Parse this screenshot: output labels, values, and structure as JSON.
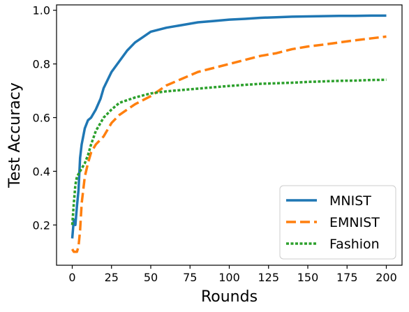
{
  "chart_data": {
    "type": "line",
    "title": "",
    "xlabel": "Rounds",
    "ylabel": "Test Accuracy",
    "xlim": [
      -10,
      210
    ],
    "ylim": [
      0.05,
      1.02
    ],
    "xticks": [
      0,
      25,
      50,
      75,
      100,
      125,
      150,
      175,
      200
    ],
    "yticks": [
      0.2,
      0.4,
      0.6,
      0.8,
      1.0
    ],
    "ytick_labels": [
      "0.2",
      "0.4",
      "0.6",
      "0.8",
      "1.0"
    ],
    "grid": false,
    "legend_position": "lower-right",
    "series": [
      {
        "name": "MNIST",
        "color": "#1f77b4",
        "style": "solid",
        "x": [
          0,
          1,
          2,
          3,
          4,
          5,
          6,
          8,
          10,
          12,
          15,
          18,
          20,
          25,
          30,
          35,
          40,
          45,
          50,
          60,
          70,
          80,
          90,
          100,
          110,
          120,
          130,
          140,
          150,
          160,
          170,
          180,
          190,
          200
        ],
        "y": [
          0.15,
          0.22,
          0.2,
          0.27,
          0.33,
          0.45,
          0.5,
          0.56,
          0.59,
          0.6,
          0.63,
          0.67,
          0.71,
          0.77,
          0.81,
          0.85,
          0.88,
          0.9,
          0.92,
          0.935,
          0.945,
          0.955,
          0.96,
          0.965,
          0.968,
          0.972,
          0.974,
          0.976,
          0.977,
          0.978,
          0.979,
          0.979,
          0.98,
          0.98
        ]
      },
      {
        "name": "EMNIST",
        "color": "#ff7f0e",
        "style": "dashed",
        "x": [
          0,
          1,
          2,
          3,
          4,
          5,
          6,
          7,
          8,
          10,
          12,
          15,
          20,
          25,
          30,
          40,
          50,
          60,
          70,
          80,
          90,
          100,
          110,
          120,
          130,
          140,
          150,
          160,
          170,
          180,
          190,
          200
        ],
        "y": [
          0.11,
          0.1,
          0.1,
          0.1,
          0.12,
          0.18,
          0.28,
          0.33,
          0.38,
          0.43,
          0.47,
          0.5,
          0.53,
          0.58,
          0.61,
          0.65,
          0.68,
          0.72,
          0.745,
          0.77,
          0.785,
          0.8,
          0.815,
          0.83,
          0.84,
          0.855,
          0.865,
          0.872,
          0.88,
          0.888,
          0.895,
          0.902
        ]
      },
      {
        "name": "Fashion",
        "color": "#2ca02c",
        "style": "dotted",
        "x": [
          0,
          1,
          2,
          3,
          5,
          8,
          10,
          12,
          15,
          20,
          25,
          30,
          40,
          50,
          60,
          70,
          80,
          90,
          100,
          110,
          120,
          130,
          140,
          150,
          160,
          170,
          180,
          190,
          200
        ],
        "y": [
          0.2,
          0.28,
          0.35,
          0.38,
          0.4,
          0.43,
          0.46,
          0.5,
          0.55,
          0.6,
          0.63,
          0.655,
          0.675,
          0.69,
          0.698,
          0.703,
          0.708,
          0.713,
          0.718,
          0.722,
          0.726,
          0.728,
          0.73,
          0.733,
          0.735,
          0.737,
          0.738,
          0.74,
          0.741
        ]
      }
    ]
  }
}
